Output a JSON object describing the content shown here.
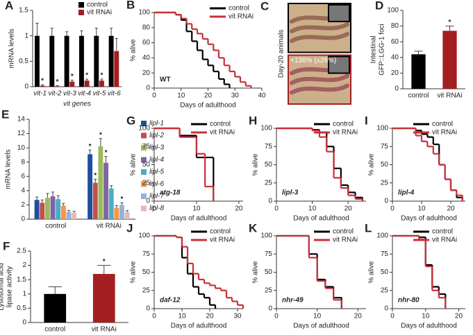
{
  "chart_data": [
    {
      "type": "bar",
      "panel": "A",
      "ylabel": "mRNA levels",
      "xlabel": "vit genes",
      "categories": [
        "vit-1",
        "vit-2",
        "vit-3",
        "vit-4",
        "vit-5",
        "vit-6"
      ],
      "ylim": [
        0,
        1.5
      ],
      "yticks": [
        0,
        0.5,
        1,
        1.5
      ],
      "series": [
        {
          "name": "control",
          "color": "#000000",
          "values": [
            1,
            1,
            1,
            1,
            1,
            1
          ],
          "errors": [
            0.25,
            0.15,
            0.08,
            0.1,
            0.15,
            0.15
          ]
        },
        {
          "name": "vit RNAi",
          "color": "#a31f22",
          "values": [
            0.02,
            0.01,
            0.1,
            0.12,
            0.12,
            0.7
          ],
          "errors": [
            0.02,
            0.01,
            0.03,
            0.03,
            0.03,
            0.25
          ],
          "marks": [
            "*",
            "*",
            "*",
            "*",
            "*",
            null
          ]
        }
      ]
    },
    {
      "type": "survival",
      "panel": "B",
      "ylabel": "% alive",
      "xlabel": "Days of adulthood",
      "label": "WT",
      "xlim": [
        0,
        40
      ],
      "xticks": [
        0,
        10,
        20,
        30,
        40
      ],
      "ylim": [
        0,
        100
      ],
      "yticks": [
        0,
        20,
        40,
        60,
        80,
        100
      ],
      "series": [
        {
          "name": "control",
          "color": "#000000",
          "x": [
            0,
            8,
            10,
            12,
            14,
            16,
            18,
            20,
            22,
            24,
            26,
            28
          ],
          "values": [
            100,
            97,
            90,
            75,
            62,
            50,
            38,
            30,
            22,
            12,
            5,
            0
          ]
        },
        {
          "name": "vit RNAi",
          "color": "#c8303a",
          "x": [
            0,
            8,
            10,
            12,
            14,
            16,
            18,
            20,
            22,
            24,
            26,
            28,
            30,
            32,
            34,
            36
          ],
          "values": [
            100,
            97,
            92,
            85,
            78,
            72,
            65,
            58,
            50,
            40,
            30,
            22,
            15,
            8,
            3,
            0
          ]
        }
      ]
    },
    {
      "type": "image",
      "panel": "C",
      "ylabel": "Day-20 animals",
      "annotation": "+136% (±26%)"
    },
    {
      "type": "bar",
      "panel": "D",
      "ylabel": [
        "Intestinal",
        "GFP::LGG-1 foci"
      ],
      "categories": [
        "control",
        "vit RNAi"
      ],
      "values": [
        44,
        74
      ],
      "errors": [
        4,
        6
      ],
      "colors": [
        "#000000",
        "#a31f22"
      ],
      "marks": [
        null,
        "*"
      ],
      "ylim": [
        0,
        100
      ],
      "yticks": [
        0,
        20,
        40,
        60,
        80,
        100
      ]
    },
    {
      "type": "bar",
      "panel": "E",
      "ylabel": "mRNA levels",
      "categories": [
        "control",
        "vit RNAi"
      ],
      "ylim": [
        0,
        14
      ],
      "yticks": [
        0,
        2,
        4,
        6,
        8,
        10,
        12,
        14
      ],
      "series": [
        {
          "name": "lipl-1",
          "color": "#1f4e9c",
          "values": [
            2.7,
            9.1
          ],
          "errors": [
            0.4,
            0.6
          ],
          "marks": [
            null,
            "*"
          ]
        },
        {
          "name": "lipl-2",
          "color": "#c0504d",
          "values": [
            2.3,
            5.1
          ],
          "errors": [
            0.4,
            0.5
          ],
          "marks": [
            null,
            "*"
          ]
        },
        {
          "name": "lipl-3",
          "color": "#9bbb59",
          "values": [
            3.0,
            10.2
          ],
          "errors": [
            0.6,
            1.1
          ],
          "marks": [
            null,
            "*"
          ]
        },
        {
          "name": "lipl-4",
          "color": "#8064a2",
          "values": [
            3.2,
            7.9
          ],
          "errors": [
            0.6,
            0.9
          ],
          "marks": [
            null,
            "*"
          ]
        },
        {
          "name": "lipl-5",
          "color": "#4bacc6",
          "values": [
            2.8,
            4.3
          ],
          "errors": [
            0.5,
            0.4
          ],
          "marks": [
            null,
            null
          ]
        },
        {
          "name": "lipl-6",
          "color": "#f79646",
          "values": [
            1.9,
            1.6
          ],
          "errors": [
            0.3,
            0.3
          ],
          "marks": [
            null,
            null
          ]
        },
        {
          "name": "lipl-7",
          "color": "#95b3d7",
          "values": [
            1.0,
            2.0
          ],
          "errors": [
            0.2,
            0.3
          ],
          "marks": [
            null,
            "*"
          ]
        },
        {
          "name": "lipl-8",
          "color": "#e6b9b8",
          "values": [
            0.9,
            1.0
          ],
          "errors": [
            0.2,
            0.2
          ],
          "marks": [
            null,
            null
          ]
        }
      ]
    },
    {
      "type": "bar",
      "panel": "F",
      "ylabel": [
        "Lysosomal acid",
        "lipase activity"
      ],
      "categories": [
        "control",
        "vit RNAi"
      ],
      "values": [
        1.0,
        1.7
      ],
      "errors": [
        0.25,
        0.3
      ],
      "colors": [
        "#000000",
        "#a31f22"
      ],
      "marks": [
        null,
        "*"
      ],
      "ylim": [
        0,
        2.5
      ],
      "yticks": [
        0,
        0.5,
        1,
        1.5,
        2,
        2.5
      ]
    },
    {
      "type": "survival",
      "panel": "G",
      "ylabel": "% alive",
      "xlabel": "Days of adulthood",
      "label": "atg-18",
      "xlim": [
        0,
        21
      ],
      "xticks": [
        0,
        10,
        20
      ],
      "ylim": [
        0,
        100
      ],
      "yticks": [
        0,
        25,
        50,
        75,
        100
      ],
      "series": [
        {
          "name": "control",
          "color": "#000000",
          "x": [
            0,
            6,
            10,
            12,
            14
          ],
          "values": [
            100,
            90,
            60,
            60,
            0
          ]
        },
        {
          "name": "vit RNAi",
          "color": "#c8303a",
          "x": [
            0,
            6,
            10,
            12,
            14
          ],
          "values": [
            100,
            88,
            65,
            20,
            0
          ]
        }
      ]
    },
    {
      "type": "survival",
      "panel": "H",
      "ylabel": "% alive",
      "xlabel": "Days of adulthood",
      "label": "lipl-3",
      "xlim": [
        0,
        25
      ],
      "xticks": [
        0,
        10,
        20
      ],
      "ylim": [
        0,
        100
      ],
      "yticks": [
        0,
        25,
        50,
        75,
        100
      ],
      "series": [
        {
          "name": "control",
          "color": "#000000",
          "x": [
            0,
            10,
            12,
            14,
            16,
            18,
            20,
            22,
            24
          ],
          "values": [
            100,
            98,
            94,
            75,
            45,
            22,
            12,
            5,
            0
          ]
        },
        {
          "name": "vit RNAi",
          "color": "#c8303a",
          "x": [
            0,
            10,
            12,
            14,
            16,
            18,
            20,
            22,
            24
          ],
          "values": [
            100,
            97,
            88,
            68,
            32,
            18,
            8,
            3,
            0
          ]
        }
      ]
    },
    {
      "type": "survival",
      "panel": "I",
      "ylabel": "% alive",
      "xlabel": "Days of adulthood",
      "label": "lipl-4",
      "xlim": [
        0,
        25
      ],
      "xticks": [
        0,
        10,
        20
      ],
      "ylim": [
        0,
        100
      ],
      "yticks": [
        0,
        25,
        50,
        75,
        100
      ],
      "series": [
        {
          "name": "control",
          "color": "#000000",
          "x": [
            0,
            8,
            10,
            12,
            14,
            16,
            18,
            20,
            22,
            24
          ],
          "values": [
            100,
            97,
            92,
            88,
            78,
            50,
            30,
            15,
            5,
            0
          ]
        },
        {
          "name": "vit RNAi",
          "color": "#c8303a",
          "x": [
            0,
            8,
            10,
            12,
            14,
            16,
            18,
            20,
            22,
            24
          ],
          "values": [
            100,
            90,
            82,
            75,
            65,
            50,
            30,
            15,
            8,
            0
          ]
        }
      ]
    },
    {
      "type": "survival",
      "panel": "J",
      "ylabel": "% alive",
      "xlabel": "Days of adulthood",
      "label": "daf-12",
      "xlim": [
        0,
        32
      ],
      "xticks": [
        0,
        10,
        20,
        30
      ],
      "ylim": [
        0,
        100
      ],
      "yticks": [
        0,
        25,
        50,
        75,
        100
      ],
      "series": [
        {
          "name": "control",
          "color": "#000000",
          "x": [
            0,
            8,
            10,
            12,
            14,
            16,
            18,
            20,
            22
          ],
          "values": [
            100,
            98,
            70,
            48,
            30,
            20,
            15,
            5,
            0
          ]
        },
        {
          "name": "vit RNAi",
          "color": "#c8303a",
          "x": [
            0,
            8,
            10,
            12,
            14,
            16,
            18,
            20,
            22,
            24,
            26,
            28,
            30,
            32
          ],
          "values": [
            100,
            98,
            85,
            62,
            48,
            40,
            35,
            32,
            28,
            25,
            15,
            10,
            5,
            0
          ]
        }
      ]
    },
    {
      "type": "survival",
      "panel": "K",
      "ylabel": "% alive",
      "xlabel": "Days of adulthood",
      "label": "nhr-49",
      "xlim": [
        0,
        22
      ],
      "xticks": [
        0,
        10,
        20
      ],
      "ylim": [
        0,
        100
      ],
      "yticks": [
        0,
        25,
        50,
        75,
        100
      ],
      "series": [
        {
          "name": "control",
          "color": "#000000",
          "x": [
            0,
            8,
            10,
            12,
            14,
            16
          ],
          "values": [
            100,
            75,
            40,
            30,
            15,
            0
          ]
        },
        {
          "name": "vit RNAi",
          "color": "#c8303a",
          "x": [
            0,
            8,
            10,
            12,
            14,
            16
          ],
          "values": [
            100,
            70,
            38,
            28,
            12,
            0
          ]
        }
      ]
    },
    {
      "type": "survival",
      "panel": "L",
      "ylabel": "% alive",
      "xlabel": "Days of adulthood",
      "label": "nhr-80",
      "xlim": [
        0,
        22
      ],
      "xticks": [
        0,
        10,
        20
      ],
      "ylim": [
        0,
        100
      ],
      "yticks": [
        0,
        25,
        50,
        75,
        100
      ],
      "series": [
        {
          "name": "control",
          "color": "#000000",
          "x": [
            0,
            8,
            10,
            12,
            14,
            16
          ],
          "values": [
            100,
            98,
            60,
            30,
            20,
            0
          ]
        },
        {
          "name": "vit RNAi",
          "color": "#c8303a",
          "x": [
            0,
            8,
            10,
            12,
            14,
            16
          ],
          "values": [
            100,
            95,
            58,
            25,
            15,
            0
          ]
        }
      ]
    }
  ]
}
